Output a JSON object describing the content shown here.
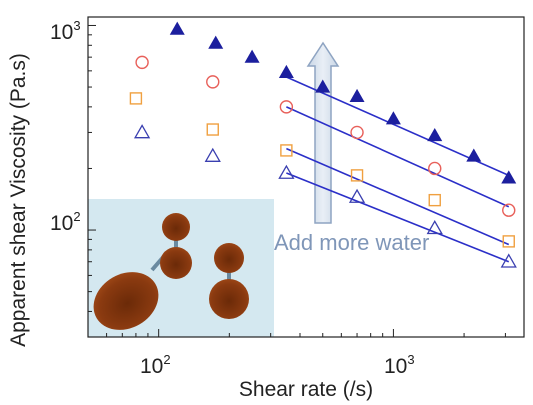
{
  "chart_data": {
    "type": "scatter",
    "title": "",
    "xlabel": "Shear rate (/s)",
    "ylabel": "Apparent shear Viscosity (Pa.s)",
    "x_scale": "log",
    "y_scale": "log",
    "xlim": [
      50,
      3600
    ],
    "ylim": [
      30,
      1100
    ],
    "x_ticks": [
      {
        "base": "10",
        "exp": "2",
        "value": 100
      },
      {
        "base": "10",
        "exp": "3",
        "value": 1000
      }
    ],
    "y_ticks": [
      {
        "base": "10",
        "exp": "2",
        "value": 100
      },
      {
        "base": "10",
        "exp": "3",
        "value": 1000
      }
    ],
    "grid": false,
    "legend": "none",
    "annotation": "Add more water",
    "inset": "illustration of merging droplets",
    "series": [
      {
        "marker": "filled-triangle",
        "color": "#1c1f9e",
        "x": [
          120,
          175,
          250,
          350,
          500,
          700,
          1000,
          1500,
          2200,
          3100
        ],
        "y": [
          960,
          820,
          700,
          590,
          500,
          450,
          350,
          290,
          230,
          180
        ],
        "fit": {
          "x": [
            350,
            3100
          ],
          "y": [
            560,
            185
          ]
        }
      },
      {
        "marker": "open-circle",
        "color": "#e8605a",
        "x": [
          85,
          170,
          350,
          700,
          1500,
          3100
        ],
        "y": [
          660,
          530,
          400,
          300,
          200,
          125
        ],
        "fit": {
          "x": [
            350,
            3100
          ],
          "y": [
            400,
            130
          ]
        }
      },
      {
        "marker": "open-square",
        "color": "#f0a040",
        "x": [
          80,
          170,
          350,
          700,
          1500,
          3100
        ],
        "y": [
          440,
          310,
          245,
          185,
          140,
          88
        ],
        "fit": {
          "x": [
            350,
            3100
          ],
          "y": [
            250,
            85
          ]
        }
      },
      {
        "marker": "open-triangle",
        "color": "#3a3fb0",
        "x": [
          85,
          170,
          350,
          700,
          1500,
          3100
        ],
        "y": [
          300,
          230,
          190,
          145,
          102,
          70
        ],
        "fit": {
          "x": [
            350,
            3100
          ],
          "y": [
            190,
            70
          ]
        }
      }
    ]
  }
}
